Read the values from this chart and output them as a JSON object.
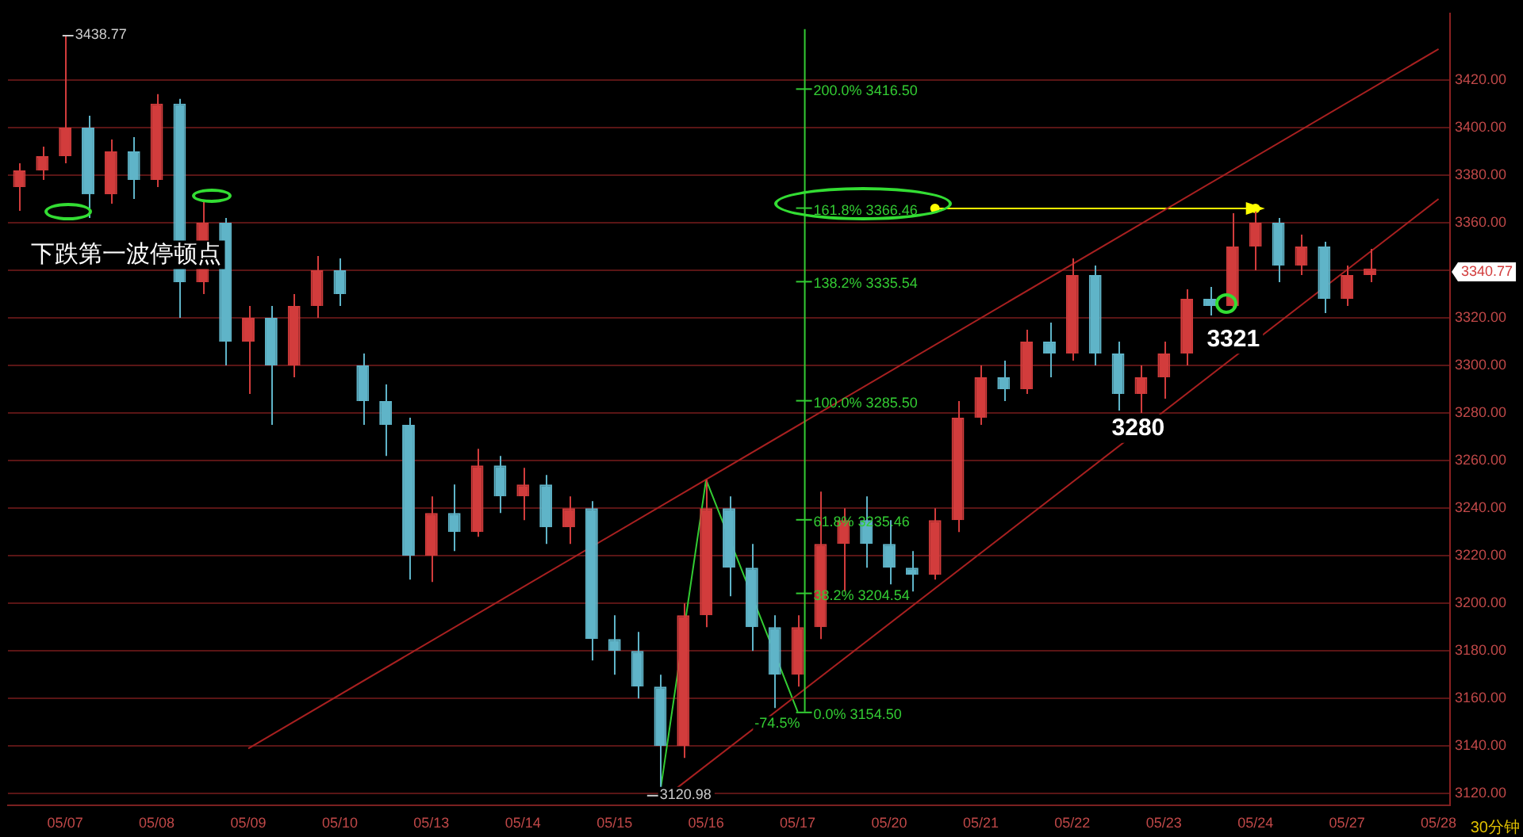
{
  "chart_data": {
    "type": "candlestick",
    "categories": [
      null,
      null,
      "05/07",
      null,
      null,
      null,
      "05/08",
      null,
      null,
      null,
      "05/09",
      null,
      null,
      null,
      "05/10",
      null,
      null,
      null,
      "05/13",
      null,
      null,
      null,
      "05/14",
      null,
      null,
      null,
      "05/15",
      null,
      null,
      null,
      "05/16",
      null,
      null,
      null,
      "05/17",
      null,
      null,
      null,
      "05/20",
      null,
      null,
      null,
      "05/21",
      null,
      null,
      null,
      "05/22",
      null,
      null,
      null,
      "05/23",
      null,
      null,
      null,
      "05/24",
      null,
      null,
      null,
      "05/27",
      null,
      null,
      null,
      "05/28"
    ],
    "ohlc": [
      [
        3375,
        3385,
        3365,
        3382
      ],
      [
        3382,
        3392,
        3378,
        3388
      ],
      [
        3388,
        3438.77,
        3385,
        3400
      ],
      [
        3400,
        3405,
        3362,
        3372
      ],
      [
        3372,
        3395,
        3368,
        3390
      ],
      [
        3390,
        3396,
        3370,
        3378
      ],
      [
        3378,
        3414,
        3375,
        3410
      ],
      [
        3410,
        3412,
        3320,
        3335
      ],
      [
        3335,
        3369,
        3330,
        3360
      ],
      [
        3360,
        3362,
        3300,
        3310
      ],
      [
        3310,
        3325,
        3288,
        3320
      ],
      [
        3320,
        3325,
        3275,
        3300
      ],
      [
        3300,
        3330,
        3295,
        3325
      ],
      [
        3325,
        3346,
        3320,
        3340
      ],
      [
        3340,
        3345,
        3325,
        3330
      ],
      [
        3300,
        3305,
        3275,
        3285
      ],
      [
        3285,
        3292,
        3262,
        3275
      ],
      [
        3275,
        3278,
        3210,
        3220
      ],
      [
        3220,
        3245,
        3209,
        3238
      ],
      [
        3238,
        3250,
        3222,
        3230
      ],
      [
        3230,
        3265,
        3228,
        3258
      ],
      [
        3258,
        3262,
        3238,
        3245
      ],
      [
        3245,
        3257,
        3235,
        3250
      ],
      [
        3250,
        3254,
        3225,
        3232
      ],
      [
        3232,
        3245,
        3225,
        3240
      ],
      [
        3240,
        3243,
        3176,
        3185
      ],
      [
        3185,
        3195,
        3170,
        3180
      ],
      [
        3180,
        3188,
        3160,
        3165
      ],
      [
        3165,
        3170,
        3120.98,
        3140
      ],
      [
        3140,
        3200,
        3135,
        3195
      ],
      [
        3195,
        3252,
        3190,
        3240
      ],
      [
        3240,
        3245,
        3203,
        3215
      ],
      [
        3215,
        3225,
        3180,
        3190
      ],
      [
        3190,
        3195,
        3156,
        3170
      ],
      [
        3170,
        3195,
        3165,
        3190
      ],
      [
        3190,
        3247,
        3185,
        3225
      ],
      [
        3225,
        3240,
        3205,
        3235
      ],
      [
        3235,
        3245,
        3215,
        3225
      ],
      [
        3225,
        3235,
        3208,
        3215
      ],
      [
        3215,
        3222,
        3205,
        3212
      ],
      [
        3212,
        3240,
        3210,
        3235
      ],
      [
        3235,
        3285,
        3230,
        3278
      ],
      [
        3278,
        3300,
        3275,
        3295
      ],
      [
        3295,
        3302,
        3285,
        3290
      ],
      [
        3290,
        3315,
        3288,
        3310
      ],
      [
        3310,
        3318,
        3295,
        3305
      ],
      [
        3305,
        3345,
        3302,
        3338
      ],
      [
        3338,
        3342,
        3300,
        3305
      ],
      [
        3305,
        3310,
        3281,
        3288
      ],
      [
        3288,
        3300,
        3280,
        3295
      ],
      [
        3295,
        3310,
        3286,
        3305
      ],
      [
        3305,
        3332,
        3300,
        3328
      ],
      [
        3328,
        3333,
        3321,
        3325
      ],
      [
        3325,
        3364,
        3324,
        3350
      ],
      [
        3350,
        3366,
        3340,
        3360
      ],
      [
        3360,
        3362,
        3335,
        3342
      ],
      [
        3342,
        3355,
        3338,
        3350
      ],
      [
        3350,
        3352,
        3322,
        3328
      ],
      [
        3328,
        3342,
        3325,
        3338
      ],
      [
        3338,
        3349,
        3335,
        3340.77
      ],
      null,
      null,
      null
    ],
    "series": [
      {
        "type": "line",
        "color": "#a82020",
        "values": [
          null,
          null,
          null,
          null,
          null,
          null,
          null,
          null,
          null,
          null,
          3139,
          null,
          null,
          null,
          null,
          null,
          null,
          null,
          null,
          null,
          null,
          null,
          null,
          null,
          null,
          null,
          null,
          null,
          null,
          null,
          null,
          null,
          null,
          null,
          null,
          null,
          null,
          null,
          null,
          null,
          null,
          null,
          null,
          null,
          null,
          null,
          null,
          null,
          null,
          null,
          null,
          null,
          null,
          null,
          null,
          null,
          null,
          null,
          null,
          null,
          null,
          null,
          3433
        ]
      },
      {
        "type": "line",
        "color": "#a82020",
        "values": [
          null,
          null,
          null,
          null,
          null,
          null,
          null,
          null,
          null,
          null,
          null,
          null,
          null,
          null,
          null,
          null,
          null,
          null,
          null,
          null,
          null,
          null,
          null,
          null,
          null,
          null,
          null,
          null,
          3117,
          null,
          null,
          null,
          null,
          null,
          null,
          null,
          null,
          null,
          null,
          null,
          null,
          null,
          null,
          null,
          null,
          null,
          null,
          null,
          null,
          null,
          null,
          null,
          null,
          null,
          null,
          null,
          null,
          null,
          null,
          null,
          null,
          null,
          3370
        ]
      },
      {
        "type": "line",
        "color": "#ffff00",
        "marker": "circle",
        "values": [
          null,
          null,
          null,
          null,
          null,
          null,
          null,
          null,
          null,
          null,
          null,
          null,
          null,
          null,
          null,
          null,
          null,
          null,
          null,
          null,
          null,
          null,
          null,
          null,
          null,
          null,
          null,
          null,
          null,
          null,
          null,
          null,
          null,
          null,
          null,
          null,
          null,
          null,
          null,
          null,
          3366,
          null,
          null,
          null,
          null,
          null,
          null,
          null,
          null,
          null,
          null,
          null,
          null,
          null,
          3366,
          null,
          null,
          null,
          null,
          null,
          null,
          null,
          null
        ]
      },
      {
        "type": "line",
        "color": "#33cc33",
        "values": [
          null,
          null,
          null,
          null,
          null,
          null,
          null,
          null,
          null,
          null,
          null,
          null,
          null,
          null,
          null,
          null,
          null,
          null,
          null,
          null,
          null,
          null,
          null,
          null,
          null,
          null,
          null,
          null,
          3121,
          null,
          3252,
          null,
          null,
          null,
          3154.5,
          null,
          null,
          null,
          null,
          null,
          null,
          null,
          null,
          null,
          null,
          null,
          null,
          null,
          null,
          null,
          null,
          null,
          null,
          null,
          null,
          null,
          null,
          null,
          null,
          null,
          null,
          null,
          null
        ]
      }
    ],
    "ylim": [
      3115,
      3448
    ],
    "yticks": [
      {
        "value": 3120,
        "label": "3120.00"
      },
      {
        "value": 3140,
        "label": "3140.00"
      },
      {
        "value": 3160,
        "label": "3160.00"
      },
      {
        "value": 3180,
        "label": "3180.00"
      },
      {
        "value": 3200,
        "label": "3200.00"
      },
      {
        "value": 3220,
        "label": "3220.00"
      },
      {
        "value": 3240,
        "label": "3240.00"
      },
      {
        "value": 3260,
        "label": "3260.00"
      },
      {
        "value": 3280,
        "label": "3280.00"
      },
      {
        "value": 3300,
        "label": "3300.00"
      },
      {
        "value": 3320,
        "label": "3320.00"
      },
      {
        "value": 3340,
        "label": null
      },
      {
        "value": 3360,
        "label": "3360.00"
      },
      {
        "value": 3380,
        "label": "3380.00"
      },
      {
        "value": 3400,
        "label": "3400.00"
      },
      {
        "value": 3420,
        "label": "3420.00"
      }
    ],
    "grid": "y",
    "ref_lines": [
      {
        "axis": "y",
        "value": 3416.5,
        "label": "200.0% 3416.50",
        "color": "#33cc33"
      },
      {
        "axis": "y",
        "value": 3366.46,
        "label": "161.8% 3366.46",
        "color": "#33cc33"
      },
      {
        "axis": "y",
        "value": 3335.54,
        "label": "138.2% 3335.54",
        "color": "#33cc33"
      },
      {
        "axis": "y",
        "value": 3285.5,
        "label": "100.0% 3285.50",
        "color": "#33cc33"
      },
      {
        "axis": "y",
        "value": 3235.46,
        "label": "61.8% 3235.46",
        "color": "#33cc33"
      },
      {
        "axis": "y",
        "value": 3204.54,
        "label": "38.2% 3204.54",
        "color": "#33cc33"
      },
      {
        "axis": "y",
        "value": 3154.5,
        "label": "0.0% 3154.50",
        "color": "#33cc33"
      }
    ],
    "annotations": [
      "3438.77",
      "3120.98",
      "3280",
      "3321",
      "3340.77",
      "-74.5%",
      "下跌第一波停顿点",
      "30分钟"
    ]
  }
}
